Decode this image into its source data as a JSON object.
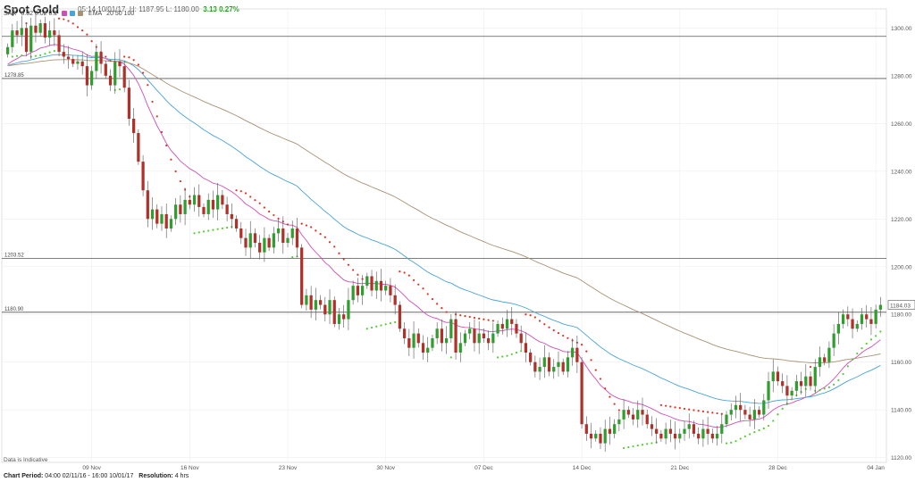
{
  "header": {
    "title": "Spot Gold",
    "quote_prefix": "05:14 10/01/17",
    "quote_hl": "H: 1187.95  L: 1180.00",
    "quote_change": "3.13 0.27%"
  },
  "indicators": {
    "sar_label": "SAR",
    "sar_params": "0.02  0.02  0.2",
    "ema_label": "EMA",
    "ema_params": "20  50  100"
  },
  "footer": {
    "period_label": "Chart Period:",
    "period_value": "04:00 02/11/16 - 16:00 10/01/17",
    "resolution_label": "Resolution:",
    "resolution_value": "4 hrs"
  },
  "disclaimer": "Data is Indicative",
  "colors": {
    "up": "#2f9e2f",
    "down": "#b0302a",
    "sar_up": "#55cc33",
    "sar_down": "#e0321e",
    "ema20": "#d04fb5",
    "ema50": "#4aa3d8",
    "ema100": "#a89274",
    "hline": "#555555",
    "grid": "#eeeeee"
  },
  "chart_data": {
    "type": "candlestick",
    "title": "Spot Gold",
    "ylim": [
      1118,
      1308
    ],
    "y_ticks": [
      1120,
      1140,
      1160,
      1180,
      1200,
      1220,
      1240,
      1260,
      1280,
      1300
    ],
    "x_ticks": [
      "09 Nov",
      "16 Nov",
      "23 Nov",
      "30 Nov",
      "07 Dec",
      "14 Dec",
      "21 Dec",
      "28 Dec",
      "04 Jan"
    ],
    "x_tick_index": [
      18,
      39,
      60,
      81,
      102,
      123,
      144,
      165,
      186
    ],
    "horizontal_levels": [
      {
        "value": 1296.5,
        "label": ""
      },
      {
        "value": 1278.85,
        "label": "1278.85"
      },
      {
        "value": 1203.52,
        "label": "1203.52"
      },
      {
        "value": 1180.9,
        "label": "1180.90"
      }
    ],
    "last_price": "1184.03",
    "close": [
      1292,
      1299,
      1297,
      1300,
      1290,
      1301,
      1298,
      1302,
      1296,
      1299,
      1297,
      1290,
      1288,
      1287,
      1285,
      1286,
      1284,
      1276,
      1282,
      1290,
      1285,
      1280,
      1276,
      1286,
      1284,
      1275,
      1262,
      1256,
      1244,
      1232,
      1220,
      1224,
      1218,
      1222,
      1216,
      1220,
      1226,
      1222,
      1228,
      1226,
      1230,
      1225,
      1222,
      1228,
      1224,
      1230,
      1226,
      1222,
      1220,
      1216,
      1212,
      1208,
      1214,
      1210,
      1206,
      1212,
      1208,
      1214,
      1216,
      1210,
      1212,
      1216,
      1208,
      1184,
      1188,
      1182,
      1186,
      1184,
      1180,
      1186,
      1176,
      1180,
      1178,
      1186,
      1192,
      1188,
      1192,
      1196,
      1190,
      1194,
      1190,
      1192,
      1188,
      1184,
      1174,
      1170,
      1166,
      1172,
      1168,
      1164,
      1166,
      1170,
      1174,
      1168,
      1170,
      1178,
      1164,
      1168,
      1172,
      1174,
      1168,
      1172,
      1170,
      1168,
      1172,
      1176,
      1174,
      1178,
      1176,
      1172,
      1168,
      1164,
      1160,
      1156,
      1158,
      1162,
      1156,
      1158,
      1160,
      1156,
      1162,
      1166,
      1160,
      1134,
      1130,
      1128,
      1130,
      1126,
      1132,
      1130,
      1134,
      1136,
      1140,
      1138,
      1136,
      1140,
      1138,
      1134,
      1132,
      1130,
      1128,
      1132,
      1130,
      1128,
      1130,
      1132,
      1134,
      1130,
      1128,
      1132,
      1130,
      1128,
      1130,
      1134,
      1138,
      1140,
      1142,
      1140,
      1138,
      1136,
      1140,
      1138,
      1144,
      1152,
      1156,
      1152,
      1150,
      1146,
      1148,
      1152,
      1150,
      1154,
      1150,
      1158,
      1162,
      1160,
      1166,
      1172,
      1176,
      1180,
      1178,
      1174,
      1176,
      1180,
      1178,
      1176,
      1182,
      1184
    ]
  }
}
